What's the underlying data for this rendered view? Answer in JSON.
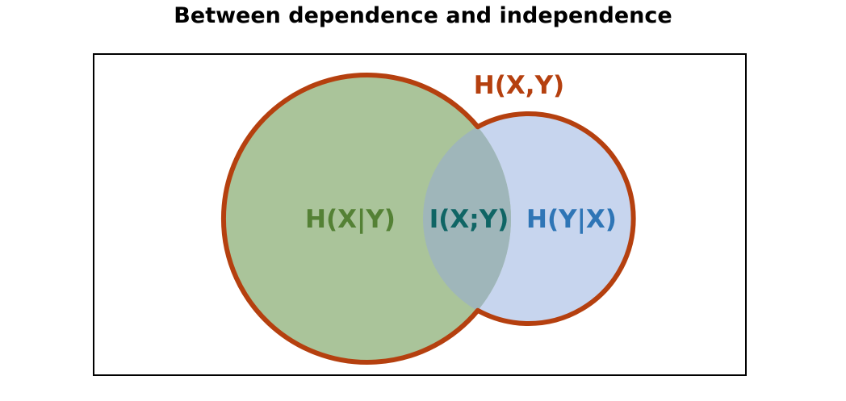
{
  "title": "Between dependence and independence",
  "labels": {
    "joint": "H(X,Y)",
    "x_given_y": "H(X|Y)",
    "mutual": "I(X;Y)",
    "y_given_x": "H(Y|X)"
  },
  "colors": {
    "outline": "#b5400f",
    "left_fill": "#aac49a",
    "right_fill": "#c7d5ee",
    "overlap_fill": "#9fb6ba",
    "joint_text": "#b5400f",
    "x_given_y_text": "#548135",
    "mutual_text": "#0f6565",
    "y_given_x_text": "#2e75b6"
  }
}
